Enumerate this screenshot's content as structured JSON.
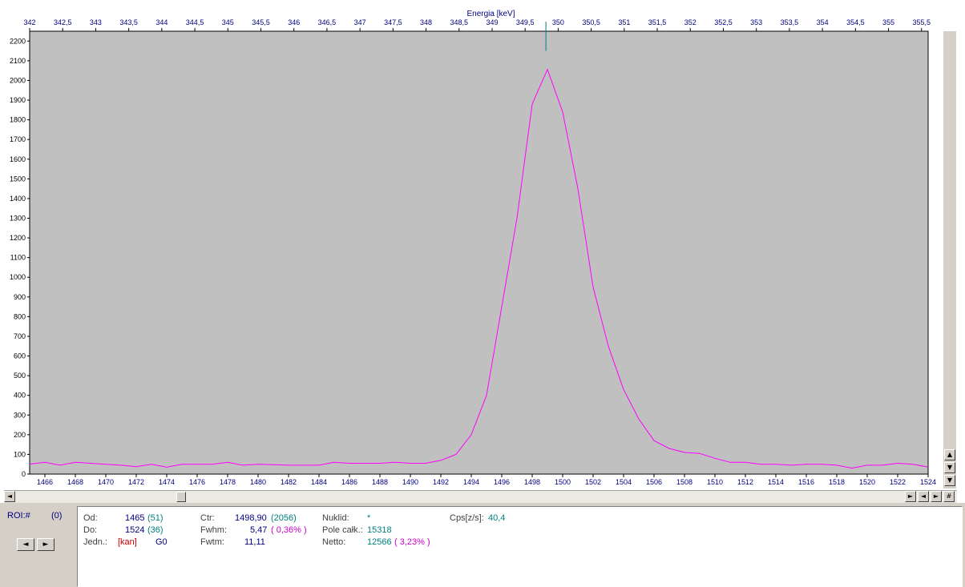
{
  "chart_data": {
    "type": "line",
    "title": "",
    "top_axis_label": "Energia [keV]",
    "top_ticks": [
      "342",
      "342,5",
      "343",
      "343,5",
      "344",
      "344,5",
      "345",
      "345,5",
      "346",
      "346,5",
      "347",
      "347,5",
      "348",
      "348,5",
      "349",
      "349,5",
      "350",
      "350,5",
      "351",
      "351,5",
      "352",
      "352,5",
      "353",
      "353,5",
      "354",
      "354,5",
      "355",
      "355,5"
    ],
    "top_range": [
      342,
      355.6
    ],
    "x_ticks": [
      1466,
      1468,
      1470,
      1472,
      1474,
      1476,
      1478,
      1480,
      1482,
      1484,
      1486,
      1488,
      1490,
      1492,
      1494,
      1496,
      1498,
      1500,
      1502,
      1504,
      1506,
      1508,
      1510,
      1512,
      1514,
      1516,
      1518,
      1520,
      1522,
      1524
    ],
    "xlim": [
      1465,
      1524
    ],
    "ylim": [
      0,
      2250
    ],
    "y_ticks": [
      0,
      100,
      200,
      300,
      400,
      500,
      600,
      700,
      800,
      900,
      1000,
      1100,
      1200,
      1300,
      1400,
      1500,
      1600,
      1700,
      1800,
      1900,
      2000,
      2100,
      2200
    ],
    "marker_x": 1498.9,
    "colors": {
      "plot_bg": "#c0c0c0",
      "line": "#ff00ff",
      "axis_text": "#000080",
      "marker": "#008080"
    },
    "series": [
      {
        "x": [
          1465,
          1466,
          1467,
          1468,
          1469,
          1470,
          1471,
          1472,
          1473,
          1474,
          1475,
          1476,
          1477,
          1478,
          1479,
          1480,
          1481,
          1482,
          1483,
          1484,
          1485,
          1486,
          1487,
          1488,
          1489,
          1490,
          1491,
          1492,
          1493,
          1494,
          1495,
          1496,
          1497,
          1498,
          1499,
          1500,
          1501,
          1502,
          1503,
          1504,
          1505,
          1506,
          1507,
          1508,
          1509,
          1510,
          1511,
          1512,
          1513,
          1514,
          1515,
          1516,
          1517,
          1518,
          1519,
          1520,
          1521,
          1522,
          1523,
          1524
        ],
        "values": [
          51,
          60,
          45,
          60,
          55,
          50,
          45,
          38,
          50,
          35,
          50,
          50,
          50,
          60,
          45,
          50,
          48,
          45,
          45,
          45,
          60,
          55,
          55,
          55,
          60,
          55,
          55,
          70,
          100,
          200,
          400,
          850,
          1300,
          1880,
          2056,
          1840,
          1450,
          950,
          650,
          430,
          280,
          170,
          130,
          110,
          105,
          80,
          60,
          60,
          50,
          50,
          45,
          50,
          50,
          45,
          30,
          45,
          45,
          55,
          50,
          36
        ]
      }
    ]
  },
  "roi": {
    "label": "ROI:#",
    "value": "(0)",
    "prev_glyph": "◄",
    "next_glyph": "►"
  },
  "stats": {
    "od_label": "Od:",
    "od_value": "1465",
    "od_paren": "(51)",
    "do_label": "Do:",
    "do_value": "1524",
    "do_paren": "(36)",
    "jedn_label": "Jedn.:",
    "jedn_unit": "[kan]",
    "jedn_extra": "G0",
    "ctr_label": "Ctr:",
    "ctr_value": "1498,90",
    "ctr_paren": "(2056)",
    "fwhm_label": "Fwhm:",
    "fwhm_value": "5,47",
    "fwhm_paren": "( 0,36% )",
    "fwtm_label": "Fwtm:",
    "fwtm_value": "11,11",
    "nuklid_label": "Nuklid:",
    "nuklid_value": "*",
    "pole_label": "Pole całk.:",
    "pole_value": "15318",
    "netto_label": "Netto:",
    "netto_value": "12566",
    "netto_paren": "( 3,23% )",
    "cps_label": "Cps[z/s]:",
    "cps_value": "40,4"
  },
  "scroll": {
    "up": "▲",
    "down": "▼",
    "left": "◄",
    "right": "►",
    "right2": "►",
    "hash": "#"
  }
}
